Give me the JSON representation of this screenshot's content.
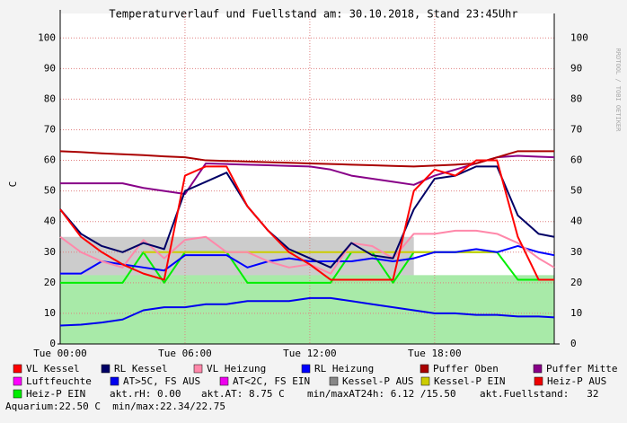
{
  "chart_data": {
    "type": "line",
    "title": "Temperaturverlauf und Fuellstand am: 30.10.2018, Stand 23:45Uhr",
    "y_label": "C",
    "watermark": "RRDTOOL / TOBI OETIKER",
    "x": [
      0,
      1,
      2,
      3,
      4,
      5,
      6,
      7,
      8,
      9,
      10,
      11,
      12,
      13,
      14,
      15,
      16,
      17,
      18,
      19,
      20,
      21,
      22,
      23,
      23.75
    ],
    "xlim": [
      0,
      23.75
    ],
    "xticks": [
      {
        "value": 0,
        "label": "Tue 00:00"
      },
      {
        "value": 6,
        "label": "Tue 06:00"
      },
      {
        "value": 12,
        "label": "Tue 12:00"
      },
      {
        "value": 18,
        "label": "Tue 18:00"
      }
    ],
    "ylim": [
      0,
      108
    ],
    "yticks": [
      0,
      10,
      20,
      30,
      40,
      50,
      60,
      70,
      80,
      90,
      100
    ],
    "grid": true,
    "areas": [
      {
        "color": "#cccccc",
        "values": [
          35,
          35,
          35,
          35,
          35,
          35,
          35,
          35,
          35,
          35,
          35,
          35,
          35,
          35,
          35,
          35,
          35,
          35,
          null,
          null,
          null,
          null,
          null,
          null,
          null
        ]
      },
      {
        "color": "#a8eaa8",
        "values": [
          22.5,
          22.5,
          22.5,
          22.5,
          22.5,
          22.5,
          22.5,
          22.5,
          22.5,
          22.5,
          22.5,
          22.5,
          22.5,
          22.5,
          22.5,
          22.5,
          22.5,
          22.5,
          22.5,
          22.5,
          22.5,
          22.5,
          22.5,
          22.5,
          22.5
        ]
      }
    ],
    "series": [
      {
        "name": "VL Kessel",
        "color": "#ff0000",
        "values": [
          44,
          35,
          30,
          26,
          23,
          21,
          55,
          58,
          58,
          45,
          37,
          30,
          26,
          21,
          21,
          21,
          21,
          50,
          57,
          55,
          60,
          60,
          35,
          21,
          21
        ]
      },
      {
        "name": "RL Kessel",
        "color": "#000066",
        "values": [
          44,
          36,
          32,
          30,
          33,
          31,
          50,
          53,
          56,
          45,
          37,
          31,
          28,
          25,
          33,
          29,
          28,
          44,
          54,
          55,
          58,
          58,
          42,
          36,
          35
        ]
      },
      {
        "name": "VL Heizung",
        "color": "#ff88aa",
        "values": [
          35,
          30,
          27,
          25,
          34,
          28,
          34,
          35,
          30,
          30,
          27,
          25,
          26,
          23,
          33,
          32,
          28,
          36,
          36,
          37,
          37,
          36,
          33,
          28,
          25
        ]
      },
      {
        "name": "RL Heizung",
        "color": "#0000ff",
        "values": [
          23,
          23,
          27,
          26,
          25,
          24,
          29,
          29,
          29,
          25,
          27,
          28,
          27,
          27,
          27,
          28,
          27,
          28,
          30,
          30,
          31,
          30,
          32,
          30,
          29
        ]
      },
      {
        "name": "Puffer Oben",
        "color": "#aa0000",
        "values": [
          63,
          62.7,
          62.3,
          62,
          61.7,
          61.3,
          61,
          60,
          59.8,
          59.6,
          59.4,
          59.2,
          59,
          58.8,
          58.6,
          58.4,
          58.2,
          58,
          58.3,
          58.6,
          59,
          61,
          63,
          63,
          63
        ]
      },
      {
        "name": "Puffer Mitte",
        "color": "#880088",
        "values": [
          52.5,
          52.5,
          52.5,
          52.5,
          51,
          50,
          49,
          59,
          58.8,
          58.6,
          58.4,
          58.2,
          58,
          57,
          55,
          54,
          53,
          52,
          55,
          57,
          59,
          61,
          61.5,
          61.2,
          61
        ]
      },
      {
        "name": "Luftfeuchte",
        "color": "#ff00ff",
        "values": [
          null,
          null,
          null,
          null,
          null,
          null,
          null,
          null,
          null,
          null,
          null,
          null,
          null,
          null,
          null,
          null,
          null,
          null,
          null,
          null,
          null,
          null,
          null,
          null,
          null
        ]
      },
      {
        "name": "AT>5C, FS AUS",
        "color": "#0000ee",
        "values": [
          6,
          6.3,
          7,
          8,
          11,
          12,
          12,
          13,
          13,
          14,
          14,
          14,
          15,
          15,
          14,
          13,
          12,
          11,
          10,
          10,
          9.5,
          9.5,
          9,
          9,
          8.7
        ]
      },
      {
        "name": "AT<2C, FS EIN",
        "color": "#ee00ee",
        "values": [
          null,
          null,
          null,
          null,
          null,
          null,
          null,
          null,
          null,
          null,
          null,
          null,
          null,
          null,
          null,
          null,
          null,
          null,
          null,
          null,
          null,
          null,
          null,
          null,
          null
        ]
      },
      {
        "name": "Kessel-P AUS",
        "color": "#888888",
        "values": [
          null,
          null,
          null,
          null,
          null,
          null,
          null,
          null,
          null,
          null,
          null,
          null,
          null,
          null,
          null,
          null,
          null,
          null,
          null,
          null,
          null,
          null,
          null,
          null,
          null
        ]
      },
      {
        "name": "Kessel-P EIN",
        "color": "#cccc00",
        "values": [
          null,
          null,
          null,
          null,
          30,
          30,
          30,
          30,
          30,
          30,
          30,
          30,
          30,
          30,
          30,
          30,
          30,
          30,
          30,
          30,
          30,
          30,
          null,
          null,
          null
        ]
      },
      {
        "name": "Heiz-P AUS",
        "color": "#ee0000",
        "values": [
          null,
          null,
          null,
          null,
          null,
          null,
          null,
          null,
          null,
          null,
          null,
          null,
          null,
          null,
          null,
          null,
          null,
          null,
          null,
          null,
          null,
          null,
          null,
          null,
          null
        ]
      },
      {
        "name": "Heiz-P EIN",
        "color": "#00ee00",
        "values": [
          20,
          20,
          20,
          20,
          30,
          20,
          30,
          30,
          30,
          20,
          20,
          20,
          20,
          20,
          30,
          30,
          20,
          30,
          30,
          30,
          30,
          30,
          21,
          21,
          21
        ]
      }
    ],
    "notes": [
      "akt.rH: 0.00",
      "akt.AT: 8.75 C",
      "min/maxAT24h: 6.12 /15.50",
      "akt.Fuellstand:   32",
      "Aquarium:22.50 C  min/max:22.34/22.75"
    ]
  }
}
